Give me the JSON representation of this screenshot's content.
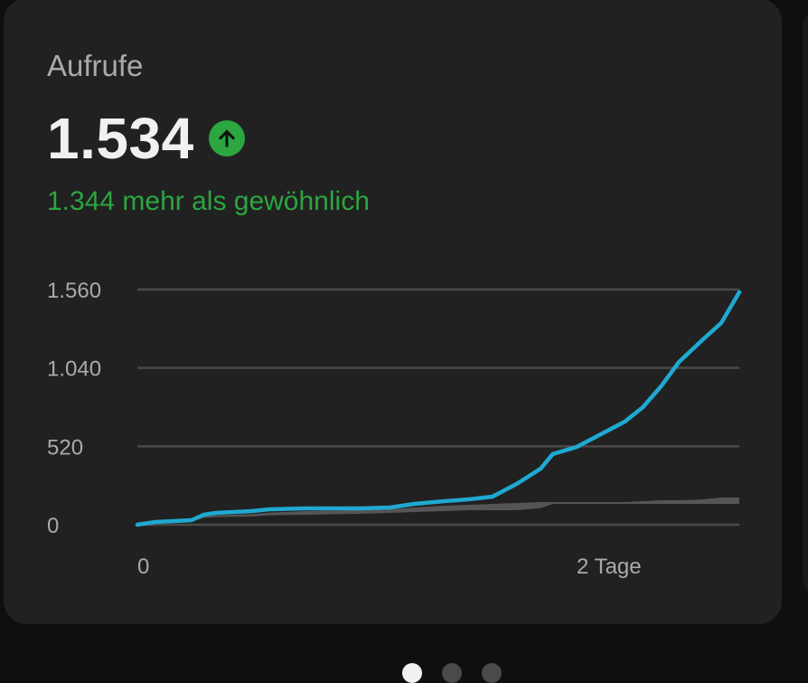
{
  "card": {
    "title": "Aufrufe",
    "value": "1.534",
    "trend_icon": "arrow-up-circle-icon",
    "comparison": "1.344 mehr als gewöhnlich"
  },
  "colors": {
    "card_bg": "#212121",
    "page_bg": "#0f0f0f",
    "line": "#1fa9d1",
    "typical_range": "#555555",
    "positive": "#2ba640",
    "grid": "#4a4a4a",
    "tick_text": "#aaaaaa"
  },
  "pagination": {
    "count": 3,
    "active_index": 0
  },
  "chart_data": {
    "type": "line",
    "title": "Aufrufe",
    "xlabel": "",
    "ylabel": "",
    "ylim": [
      0,
      1560
    ],
    "yticks": [
      "0",
      "520",
      "1.040",
      "1.560"
    ],
    "ytick_values": [
      0,
      520,
      1040,
      1560
    ],
    "xticks": [
      "0",
      "2 Tage"
    ],
    "grid": true,
    "legend": null,
    "x": [
      0,
      0.03,
      0.09,
      0.11,
      0.13,
      0.19,
      0.22,
      0.28,
      0.37,
      0.42,
      0.46,
      0.51,
      0.55,
      0.59,
      0.63,
      0.67,
      0.69,
      0.73,
      0.77,
      0.81,
      0.84,
      0.87,
      0.9,
      0.94,
      0.97,
      1.0
    ],
    "series": [
      {
        "name": "Aufrufe",
        "values": [
          0,
          18,
          30,
          66,
          78,
          90,
          102,
          108,
          108,
          114,
          138,
          156,
          168,
          186,
          270,
          372,
          468,
          516,
          600,
          684,
          780,
          918,
          1080,
          1230,
          1338,
          1542
        ]
      },
      {
        "name": "Typischer Bereich (oben)",
        "values": [
          0,
          15,
          25,
          55,
          62,
          70,
          80,
          90,
          96,
          102,
          114,
          126,
          132,
          138,
          144,
          150,
          150,
          150,
          150,
          150,
          156,
          162,
          162,
          168,
          180,
          180
        ]
      },
      {
        "name": "Typischer Bereich (unten)",
        "values": [
          0,
          10,
          20,
          45,
          50,
          55,
          62,
          66,
          72,
          78,
          84,
          90,
          96,
          96,
          96,
          110,
          138,
          138,
          138,
          138,
          138,
          138,
          138,
          138,
          138,
          138
        ]
      }
    ]
  }
}
